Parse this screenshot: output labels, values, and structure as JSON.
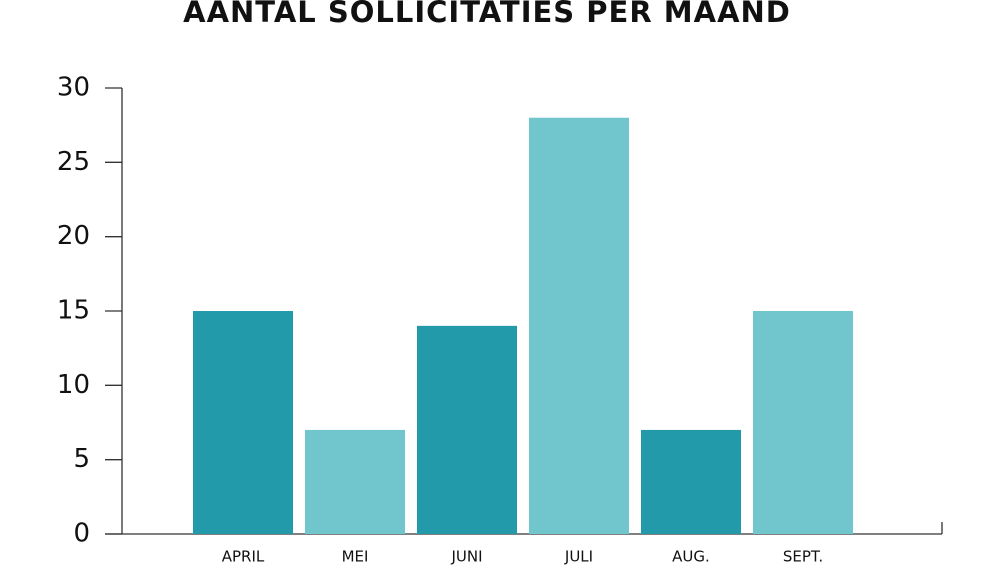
{
  "chart_data": {
    "type": "bar",
    "title": "AANTAL SOLLICITATIES PER MAAND",
    "categories": [
      "APRIL",
      "MEI",
      "JUNI",
      "JULI",
      "AUG.",
      "SEPT."
    ],
    "values": [
      15,
      7,
      14,
      28,
      7,
      15
    ],
    "colors": [
      "#229aa9",
      "#70c6cc",
      "#229aa9",
      "#70c6cc",
      "#229aa9",
      "#70c6cc"
    ],
    "ylim": [
      0,
      30
    ],
    "yticks": [
      0,
      5,
      10,
      15,
      20,
      25,
      30
    ],
    "grid": false
  }
}
